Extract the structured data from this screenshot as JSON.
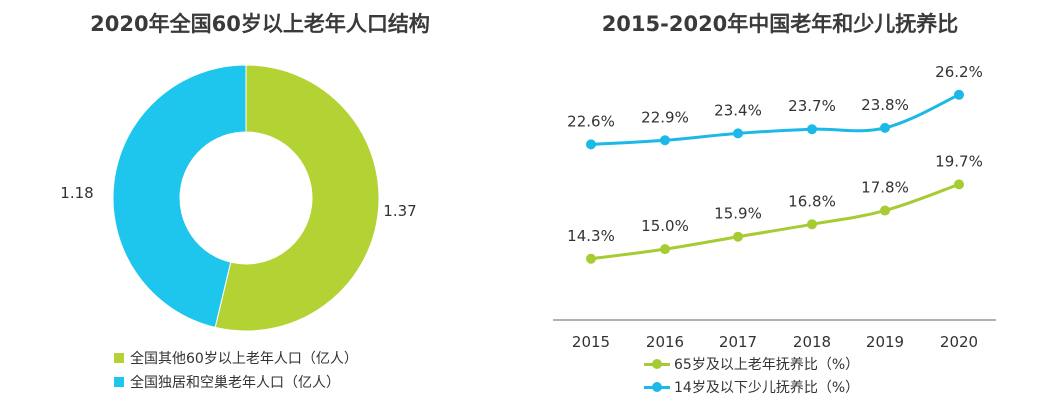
{
  "chart_data": [
    {
      "type": "pie",
      "title": "2020年全国60岁以上老年人口结构",
      "donut": true,
      "slices": [
        {
          "name": "全国其他60岁以上老年人口（亿人）",
          "value": 1.37,
          "label": "1.37",
          "color": "#b3d234"
        },
        {
          "name": "全国独居和空巢老年人口（亿人）",
          "value": 1.18,
          "label": "1.18",
          "color": "#1ec6ee"
        }
      ],
      "legend_placement": "bottom"
    },
    {
      "type": "line",
      "title": "2015-2020年中国老年和少儿抚养比",
      "categories": [
        "2015",
        "2016",
        "2017",
        "2018",
        "2019",
        "2020"
      ],
      "series": [
        {
          "name": "65岁及以上老年抚养比（%）",
          "values": [
            14.3,
            15.0,
            15.9,
            16.8,
            17.8,
            19.7
          ],
          "labels": [
            "14.3%",
            "15.0%",
            "15.9%",
            "16.8%",
            "17.8%",
            "19.7%"
          ],
          "color": "#a7cb32"
        },
        {
          "name": "14岁及以下少儿抚养比（%）",
          "values": [
            22.6,
            22.9,
            23.4,
            23.7,
            23.8,
            26.2
          ],
          "labels": [
            "22.6%",
            "22.9%",
            "23.4%",
            "23.7%",
            "23.8%",
            "26.2%"
          ],
          "color": "#1cb9e8"
        }
      ],
      "ylim": [
        10,
        28
      ],
      "grid": false,
      "legend_placement": "bottom"
    }
  ]
}
